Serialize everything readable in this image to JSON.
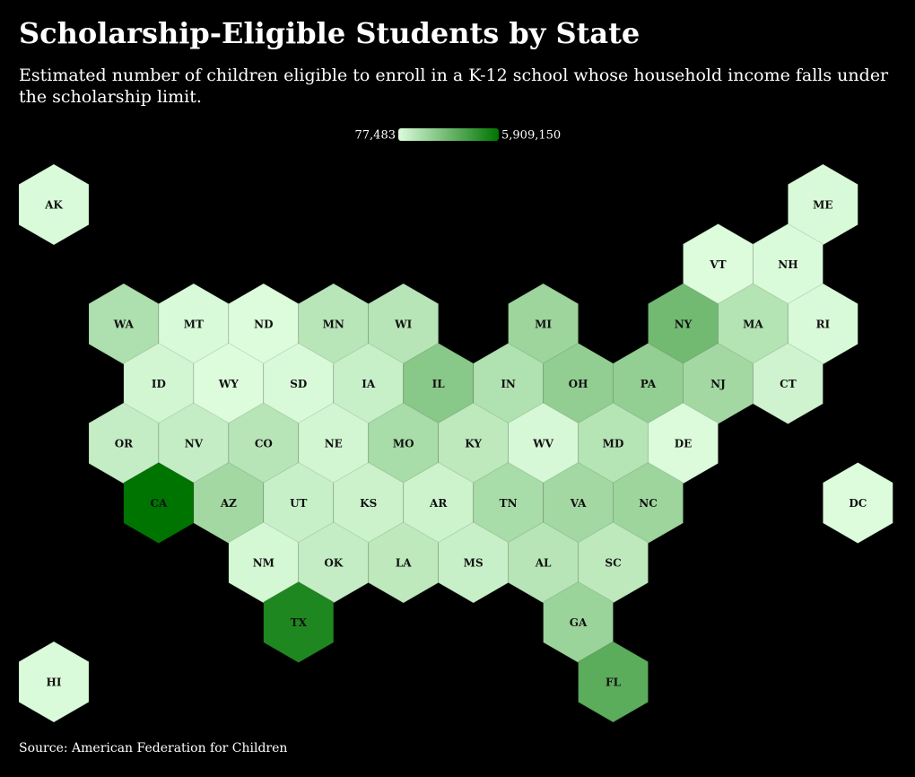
{
  "chart_data": {
    "type": "hexmap",
    "title": "Scholarship-Eligible Students by State",
    "subtitle": "Estimated number of children eligible to enroll in a K-12 school whose household income falls under the scholarship limit.",
    "source": "Source: American Federation for Children",
    "colorbar": {
      "colors": [
        "#dcfcdc",
        "#007400"
      ],
      "ticks": [
        {
          "value": 77483,
          "label": "77,483"
        },
        {
          "value": 5909150,
          "label": "5,909,150"
        }
      ]
    },
    "categories": [
      "AK",
      "ME",
      "VT",
      "NH",
      "WA",
      "MT",
      "ND",
      "MN",
      "WI",
      "MI",
      "NY",
      "MA",
      "RI",
      "ID",
      "WY",
      "SD",
      "IA",
      "IL",
      "IN",
      "OH",
      "PA",
      "NJ",
      "CT",
      "OR",
      "NV",
      "CO",
      "NE",
      "MO",
      "KY",
      "WV",
      "MD",
      "DE",
      "CA",
      "AZ",
      "UT",
      "KS",
      "AR",
      "TN",
      "VA",
      "NC",
      "DC",
      "NM",
      "OK",
      "LA",
      "MS",
      "AL",
      "SC",
      "TX",
      "GA",
      "HI",
      "FL"
    ],
    "values": [
      120000,
      150000,
      77483,
      140000,
      1300000,
      180000,
      90000,
      1000000,
      1050000,
      1750000,
      2900000,
      1150000,
      150000,
      350000,
      80000,
      170000,
      600000,
      2300000,
      1250000,
      2050000,
      2000000,
      1600000,
      450000,
      700000,
      700000,
      1050000,
      350000,
      1450000,
      900000,
      230000,
      1100000,
      110000,
      5909150,
      1600000,
      600000,
      500000,
      480000,
      1450000,
      1600000,
      1750000,
      80000,
      280000,
      700000,
      900000,
      600000,
      1050000,
      900000,
      5100000,
      1800000,
      130000,
      3500000
    ]
  }
}
